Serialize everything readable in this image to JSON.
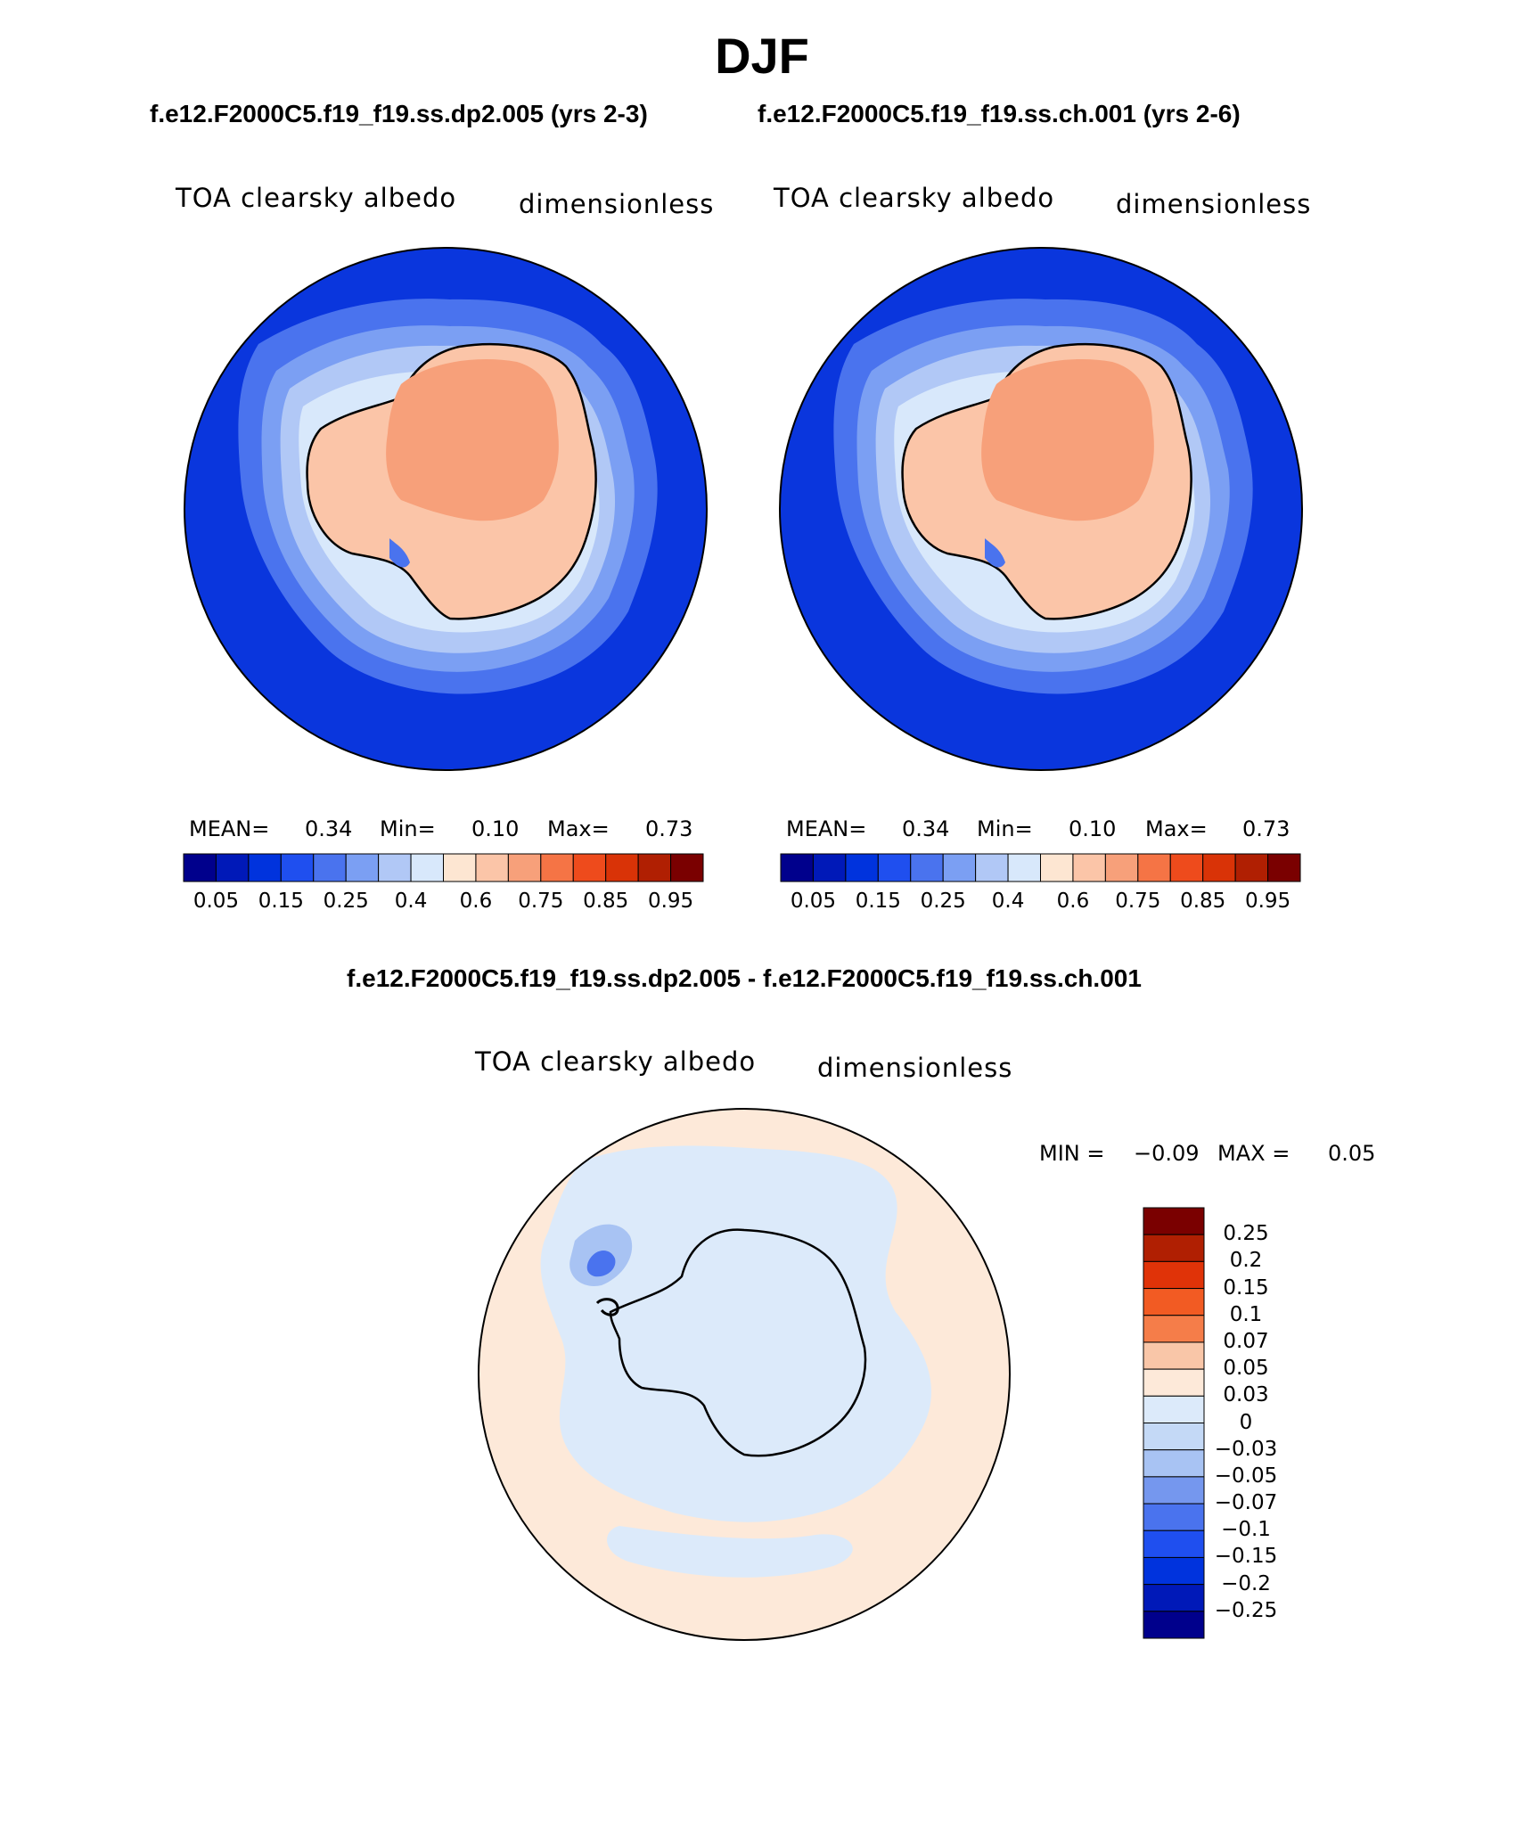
{
  "title": "DJF",
  "subtitles": {
    "left": "f.e12.F2000C5.f19_f19.ss.dp2.005 (yrs 2-3)",
    "right": "f.e12.F2000C5.f19_f19.ss.ch.001 (yrs 2-6)",
    "diff": "f.e12.F2000C5.f19_f19.ss.dp2.005 - f.e12.F2000C5.f19_f19.ss.ch.001"
  },
  "panels": [
    {
      "variable": "TOA clearsky albedo",
      "units": "dimensionless",
      "stats": {
        "mean_label": "MEAN=",
        "mean": "0.34",
        "min_label": "Min=",
        "min": "0.10",
        "max_label": "Max=",
        "max": "0.73"
      }
    },
    {
      "variable": "TOA clearsky albedo",
      "units": "dimensionless",
      "stats": {
        "mean_label": "MEAN=",
        "mean": "0.34",
        "min_label": "Min=",
        "min": "0.10",
        "max_label": "Max=",
        "max": "0.73"
      }
    }
  ],
  "diff_panel": {
    "variable": "TOA clearsky albedo",
    "units": "dimensionless",
    "minmax": {
      "min_label": "MIN =",
      "min": "−0.09",
      "max_label": "MAX =",
      "max": "0.05"
    }
  },
  "colorbars": {
    "main": {
      "colors": [
        "#00008c",
        "#0019b8",
        "#0033dd",
        "#1f4fef",
        "#4a73ee",
        "#7b9ff3",
        "#b1c8f6",
        "#d8e8fb",
        "#fde6d2",
        "#fbc5a8",
        "#f7a07a",
        "#f57445",
        "#ee4b1c",
        "#d93307",
        "#b01f02",
        "#7a0000"
      ],
      "tick_labels": [
        "0.05",
        "0.15",
        "0.25",
        "0.4",
        "0.6",
        "0.75",
        "0.85",
        "0.95"
      ]
    },
    "diff": {
      "colors": [
        "#7a0000",
        "#b01f02",
        "#e03308",
        "#f25b23",
        "#f57d49",
        "#f9c6a8",
        "#fde9d9",
        "#dceafa",
        "#c4d9f6",
        "#a8c3f3",
        "#7597ee",
        "#4a73ee",
        "#1f4fef",
        "#0033dd",
        "#0019b8",
        "#00008c"
      ],
      "tick_labels": [
        "0.25",
        "0.2",
        "0.15",
        "0.1",
        "0.07",
        "0.05",
        "0.03",
        "0",
        "−0.03",
        "−0.05",
        "−0.07",
        "−0.1",
        "−0.15",
        "−0.2",
        "−0.25"
      ]
    }
  },
  "map_colors": {
    "ocean": "#0a36dd",
    "band1": "#4a73ee",
    "band2": "#7b9ff3",
    "band3": "#b1c8f6",
    "band4": "#d8e8fb",
    "ice_edge": "#fde6d2",
    "ice": "#fbc5a8",
    "ice_high": "#f7a07a",
    "diff_pos": "#fde9d9",
    "diff_neg": "#dceafa",
    "diff_neg2": "#a8c3f3",
    "diff_neg3": "#4a73ee"
  }
}
